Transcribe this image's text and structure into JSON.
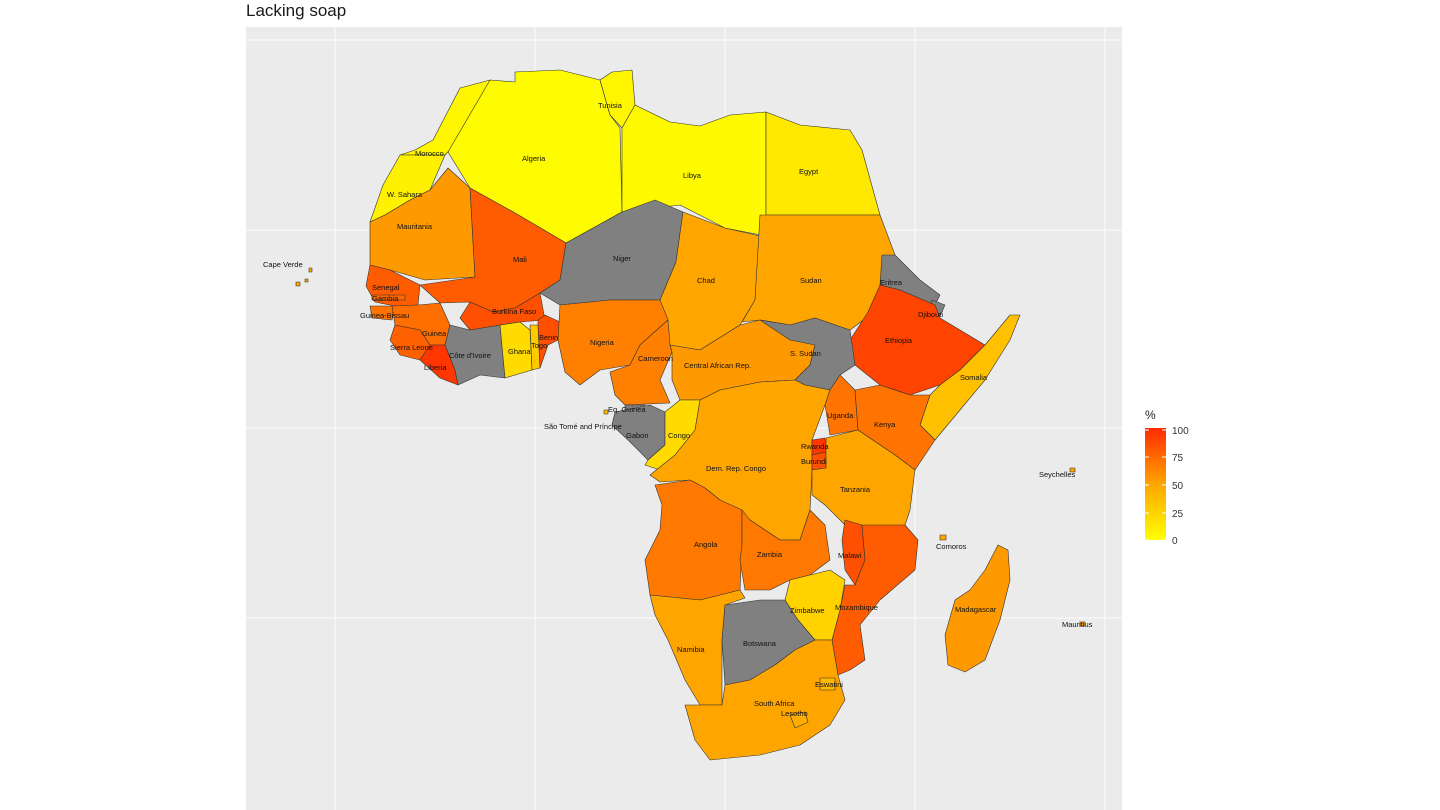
{
  "title": "Lacking soap",
  "legend": {
    "title": "%",
    "ticks": [
      "100",
      "75",
      "50",
      "25",
      "0"
    ],
    "low_color": "#ffff00",
    "mid_color": "#ffa500",
    "high_color": "#ff2a00",
    "na_color": "#808080"
  },
  "countries": {
    "tunisia": {
      "label": "Tunisia",
      "value": 5
    },
    "morocco": {
      "label": "Morocco",
      "value": 5
    },
    "algeria": {
      "label": "Algeria",
      "value": 2
    },
    "libya": {
      "label": "Libya",
      "value": 3
    },
    "egypt": {
      "label": "Egypt",
      "value": 12
    },
    "w_sahara": {
      "label": "W. Sahara",
      "value": 8
    },
    "mauritania": {
      "label": "Mauritania",
      "value": 55
    },
    "mali": {
      "label": "Mali",
      "value": 80
    },
    "niger": {
      "label": "Niger",
      "value": null
    },
    "chad": {
      "label": "Chad",
      "value": 50
    },
    "sudan": {
      "label": "Sudan",
      "value": 50
    },
    "eritrea": {
      "label": "Eritrea",
      "value": null
    },
    "djibouti": {
      "label": "Djibouti",
      "value": null
    },
    "ethiopia": {
      "label": "Ethiopia",
      "value": 90
    },
    "somalia": {
      "label": "Somalia",
      "value": 35
    },
    "senegal": {
      "label": "Senegal",
      "value": 80
    },
    "gambia": {
      "label": "Gambia",
      "value": 75
    },
    "guinea_bissau": {
      "label": "Guinea-Bissau",
      "value": 70
    },
    "guinea": {
      "label": "Guinea",
      "value": 72
    },
    "sierra_leone": {
      "label": "Sierra Leone",
      "value": 78
    },
    "liberia": {
      "label": "Liberia",
      "value": 95
    },
    "cote_divoire": {
      "label": "Côte d'Ivoire",
      "value": null
    },
    "ghana": {
      "label": "Ghana",
      "value": 20
    },
    "togo": {
      "label": "Togo",
      "value": 30
    },
    "benin": {
      "label": "Benin",
      "value": 85
    },
    "burkina_faso": {
      "label": "Burkina Faso",
      "value": 85
    },
    "nigeria": {
      "label": "Nigeria",
      "value": 65
    },
    "cameroon": {
      "label": "Cameroon",
      "value": 65
    },
    "car": {
      "label": "Central African Rep.",
      "value": 55
    },
    "s_sudan": {
      "label": "S. Sudan",
      "value": null
    },
    "eq_guinea": {
      "label": "Eq. Guinea",
      "value": null
    },
    "sao_tome": {
      "label": "São Tomé and Príncipe",
      "value": 40
    },
    "gabon": {
      "label": "Gabon",
      "value": null
    },
    "congo": {
      "label": "Congo",
      "value": 20
    },
    "drc": {
      "label": "Dem. Rep. Congo",
      "value": 50
    },
    "uganda": {
      "label": "Uganda",
      "value": 70
    },
    "kenya": {
      "label": "Kenya",
      "value": 70
    },
    "rwanda": {
      "label": "Rwanda",
      "value": 95
    },
    "burundi": {
      "label": "Burundi",
      "value": 85
    },
    "tanzania": {
      "label": "Tanzania",
      "value": 50
    },
    "angola": {
      "label": "Angola",
      "value": 68
    },
    "zambia": {
      "label": "Zambia",
      "value": 68
    },
    "malawi": {
      "label": "Malawi",
      "value": 85
    },
    "mozambique": {
      "label": "Mozambique",
      "value": 80
    },
    "zimbabwe": {
      "label": "Zimbabwe",
      "value": 25
    },
    "namibia": {
      "label": "Namibia",
      "value": 50
    },
    "botswana": {
      "label": "Botswana",
      "value": null
    },
    "south_africa": {
      "label": "South Africa",
      "value": 50
    },
    "lesotho": {
      "label": "Lesotho",
      "value": 45
    },
    "eswatini": {
      "label": "Eswatini",
      "value": 40
    },
    "madagascar": {
      "label": "Madagascar",
      "value": 55
    },
    "comoros": {
      "label": "Comoros",
      "value": 50
    },
    "seychelles": {
      "label": "Seychelles",
      "value": 50
    },
    "mauritius": {
      "label": "Mauritius",
      "value": 50
    },
    "cape_verde": {
      "label": "Cape Verde",
      "value": 50
    }
  }
}
